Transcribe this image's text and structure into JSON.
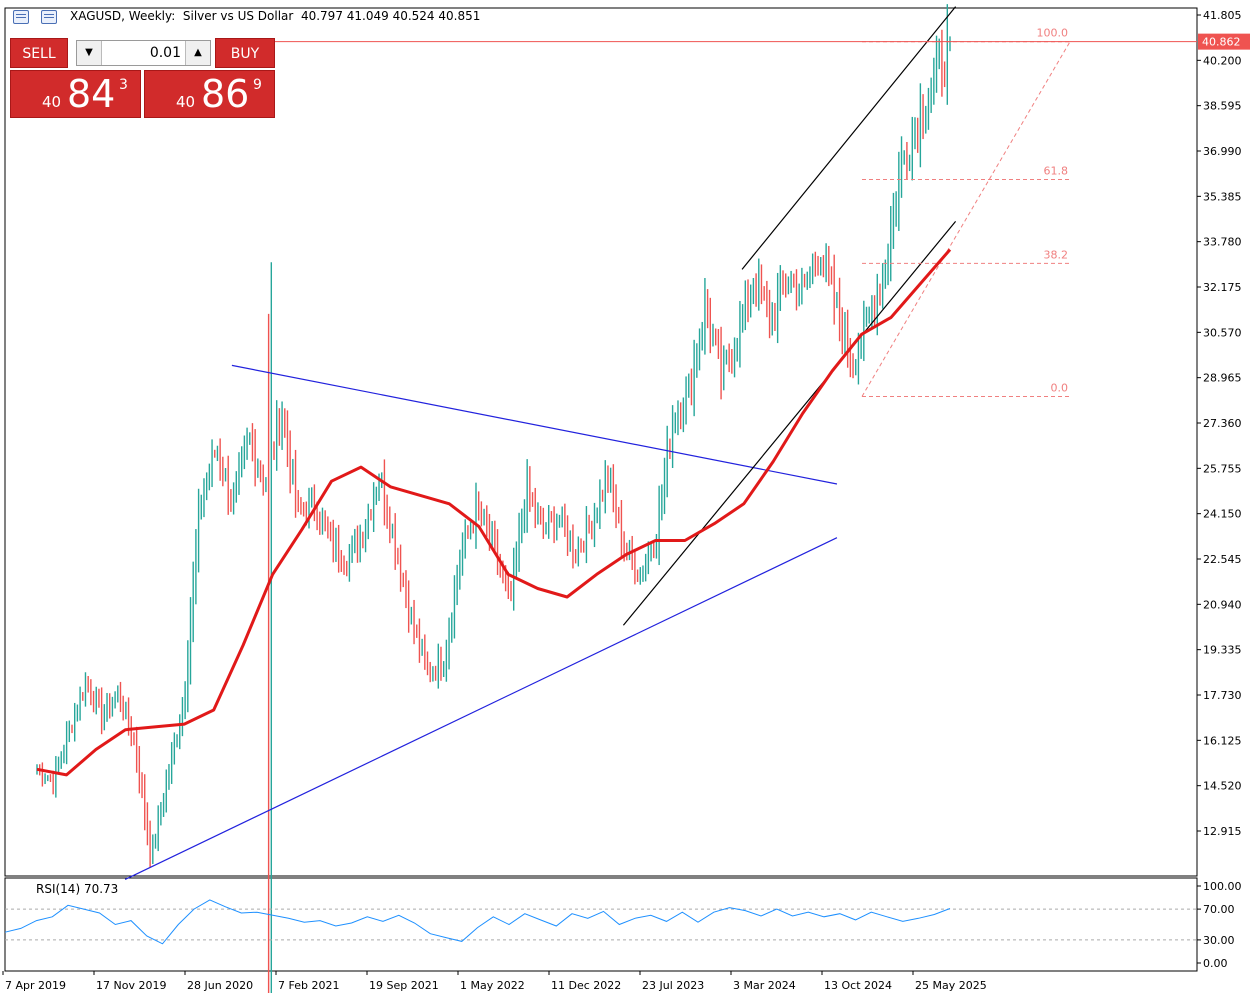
{
  "header": {
    "title": "XAGUSD, Weekly:  Silver vs US Dollar  40.797 41.049 40.524 40.851",
    "icons": [
      "grid-icon",
      "chart-icon"
    ]
  },
  "trade_panel": {
    "sell_label": "SELL",
    "buy_label": "BUY",
    "lot": "0.01",
    "sell_price": {
      "prefix": "40",
      "big": "84",
      "sup": "3"
    },
    "buy_price": {
      "prefix": "40",
      "big": "86",
      "sup": "9"
    }
  },
  "colors": {
    "bull": "#26a69a",
    "bear": "#ef5350",
    "ma": "#e11919",
    "triangle": "#2222dd",
    "channel": "#000000",
    "fib": "#f08080",
    "rsi": "#1e90ff",
    "panel": "#d12b2b"
  },
  "chart_data": [
    {
      "type": "candlestick",
      "symbol": "XAGUSD",
      "timeframe": "Weekly",
      "title": "XAGUSD, Weekly:  Silver vs US Dollar",
      "ohlc_last": {
        "open": 40.797,
        "high": 41.049,
        "low": 40.524,
        "close": 40.851
      },
      "current_price": "40.862",
      "y_ticks": [
        "41.805",
        "40.200",
        "38.595",
        "36.990",
        "35.385",
        "33.780",
        "32.175",
        "30.570",
        "28.965",
        "27.360",
        "25.755",
        "24.150",
        "22.545",
        "20.940",
        "19.335",
        "17.730",
        "16.125",
        "14.520",
        "12.915"
      ],
      "x_ticks": [
        "7 Apr 2019",
        "17 Nov 2019",
        "28 Jun 2020",
        "7 Feb 2021",
        "19 Sep 2021",
        "1 May 2022",
        "11 Dec 2022",
        "23 Jul 2023",
        "3 Mar 2024",
        "13 Oct 2024",
        "25 May 2025"
      ],
      "ylim": [
        11.2,
        41.9
      ],
      "x_dates": [
        "2019-04",
        "2019-06",
        "2019-08",
        "2019-09",
        "2019-11",
        "2020-01",
        "2020-03",
        "2020-04",
        "2020-06",
        "2020-07",
        "2020-08",
        "2020-10",
        "2020-12",
        "2021-02",
        "2021-04",
        "2021-06",
        "2021-08",
        "2021-09",
        "2021-11",
        "2022-01",
        "2022-03",
        "2022-05",
        "2022-07",
        "2022-09",
        "2022-10",
        "2022-12",
        "2023-02",
        "2023-04",
        "2023-06",
        "2023-07",
        "2023-09",
        "2023-11",
        "2024-01",
        "2024-03",
        "2024-04",
        "2024-05",
        "2024-07",
        "2024-09",
        "2024-10",
        "2024-12",
        "2025-02",
        "2025-04",
        "2025-05",
        "2025-06",
        "2025-07",
        "2025-08",
        "2025-09"
      ],
      "price_path": [
        15.1,
        14.7,
        16.5,
        18.2,
        17.0,
        17.8,
        16.0,
        12.0,
        14.8,
        17.5,
        24.5,
        26.5,
        24.5,
        26.8,
        25.2,
        27.8,
        24.2,
        24.5,
        23.2,
        22.5,
        23.5,
        25.5,
        23.0,
        20.3,
        18.5,
        19.0,
        22.8,
        24.3,
        23.0,
        21.0,
        25.0,
        23.6,
        24.0,
        22.8,
        23.8,
        25.5,
        23.0,
        22.0,
        23.5,
        27.5,
        28.5,
        31.5,
        29.0,
        30.5,
        32.5,
        31.0,
        32.5,
        32.0,
        33.5,
        31.5,
        29.5,
        31.0,
        32.8,
        36.5,
        38.0,
        39.5,
        40.85
      ],
      "ma_points": [
        15.1,
        14.9,
        15.8,
        16.5,
        16.6,
        16.7,
        17.2,
        19.5,
        22.0,
        23.6,
        25.3,
        25.8,
        25.1,
        24.8,
        24.5,
        23.7,
        22.0,
        21.5,
        21.2,
        22.0,
        22.7,
        23.2,
        23.2,
        23.8,
        24.5,
        26.0,
        27.7,
        29.2,
        30.5,
        31.1,
        32.3,
        33.5
      ],
      "fib_levels": [
        {
          "label": "100.0",
          "price": 40.86
        },
        {
          "label": "61.8",
          "price": 35.98
        },
        {
          "label": "38.2",
          "price": 33.01
        },
        {
          "label": "0.0",
          "price": 28.3
        }
      ],
      "trendlines": [
        {
          "name": "triangle-upper-line",
          "from": [
            "2020-08",
            29.4
          ],
          "to": [
            "2024-11",
            25.2
          ]
        },
        {
          "name": "triangle-lower-line",
          "from": [
            "2019-11",
            11.2
          ],
          "to": [
            "2024-11",
            23.3
          ]
        },
        {
          "name": "channel-upper-line",
          "from": [
            "2024-03",
            32.8
          ],
          "to": [
            "2025-09",
            42.1
          ]
        },
        {
          "name": "channel-lower-line",
          "from": [
            "2023-05",
            20.2
          ],
          "to": [
            "2025-09",
            34.5
          ]
        }
      ]
    },
    {
      "type": "line",
      "title": "RSI(14) 70.73",
      "y_ticks": [
        "100.00",
        "70.00",
        "30.00",
        "0.00"
      ],
      "levels": [
        70,
        30
      ],
      "ylim": [
        0,
        100
      ],
      "values": [
        40,
        45,
        55,
        60,
        75,
        70,
        65,
        50,
        55,
        35,
        25,
        50,
        70,
        82,
        73,
        65,
        66,
        62,
        58,
        53,
        55,
        48,
        52,
        60,
        54,
        62,
        52,
        38,
        33,
        28,
        46,
        60,
        50,
        64,
        56,
        48,
        64,
        58,
        67,
        50,
        58,
        62,
        54,
        66,
        53,
        66,
        72,
        68,
        61,
        70,
        61,
        66,
        60,
        64,
        56,
        66,
        60,
        54,
        58,
        63,
        70.73
      ]
    }
  ]
}
